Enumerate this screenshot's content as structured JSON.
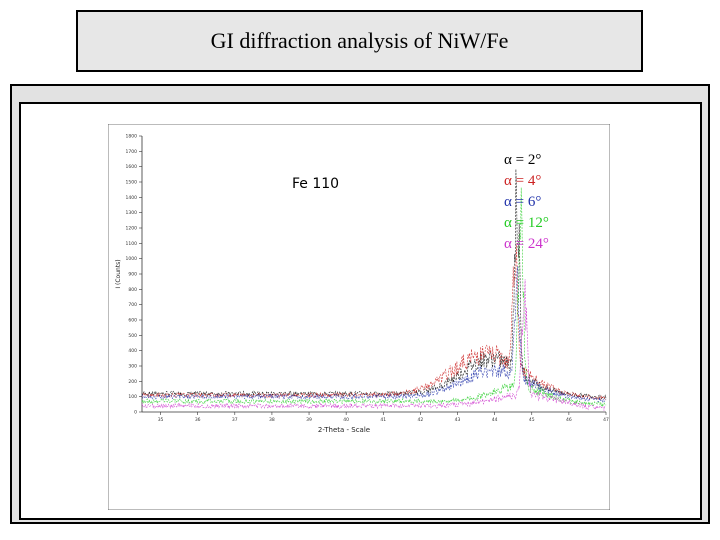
{
  "slide": {
    "title": "GI diffraction analysis of NiW/Fe"
  },
  "chart_data": {
    "type": "line",
    "title": "GI diffraction analysis of NiW/Fe",
    "xlabel": "2-Theta - Scale",
    "ylabel": "I (Counts)",
    "xlim": [
      34.5,
      47.0
    ],
    "ylim": [
      0,
      1800
    ],
    "x_ticks": [
      35,
      36,
      37,
      38,
      39,
      40,
      41,
      42,
      43,
      44,
      45,
      46,
      47
    ],
    "y_ticks": [
      0,
      100,
      200,
      300,
      400,
      500,
      600,
      700,
      800,
      900,
      1000,
      1100,
      1200,
      1300,
      1400,
      1500,
      1600,
      1700,
      1800
    ],
    "grid": false,
    "legend_position": "top-right",
    "annotation": "Fe 110",
    "series": [
      {
        "name": "α = 2°",
        "color": "#000000",
        "peak_x": 44.6,
        "peak_height": 1500,
        "base": 120,
        "hump_height": 230,
        "hump_center": 43.9,
        "hump_width": 1.1
      },
      {
        "name": "α = 4°",
        "color": "#cc2222",
        "peak_x": 44.55,
        "peak_height": 1000,
        "base": 110,
        "hump_height": 270,
        "hump_center": 43.8,
        "hump_width": 1.3
      },
      {
        "name": "α = 6°",
        "color": "#2233aa",
        "peak_x": 44.6,
        "peak_height": 800,
        "base": 100,
        "hump_height": 170,
        "hump_center": 44.0,
        "hump_width": 1.2
      },
      {
        "name": "α = 12°",
        "color": "#22cc22",
        "peak_x": 44.7,
        "peak_height": 1550,
        "base": 70,
        "hump_height": 90,
        "hump_center": 44.6,
        "hump_width": 1.0
      },
      {
        "name": "α = 24°",
        "color": "#cc33cc",
        "peak_x": 44.8,
        "peak_height": 900,
        "base": 40,
        "hump_height": 70,
        "hump_center": 44.8,
        "hump_width": 1.2
      }
    ],
    "legend_entries": [
      {
        "text": "α = 2°",
        "color": "#000000"
      },
      {
        "text": "α = 4°",
        "color": "#cc2222"
      },
      {
        "text": "α = 6°",
        "color": "#2233aa"
      },
      {
        "text": "α = 12°",
        "color": "#22cc22"
      },
      {
        "text": "α = 24°",
        "color": "#cc33cc"
      }
    ]
  }
}
